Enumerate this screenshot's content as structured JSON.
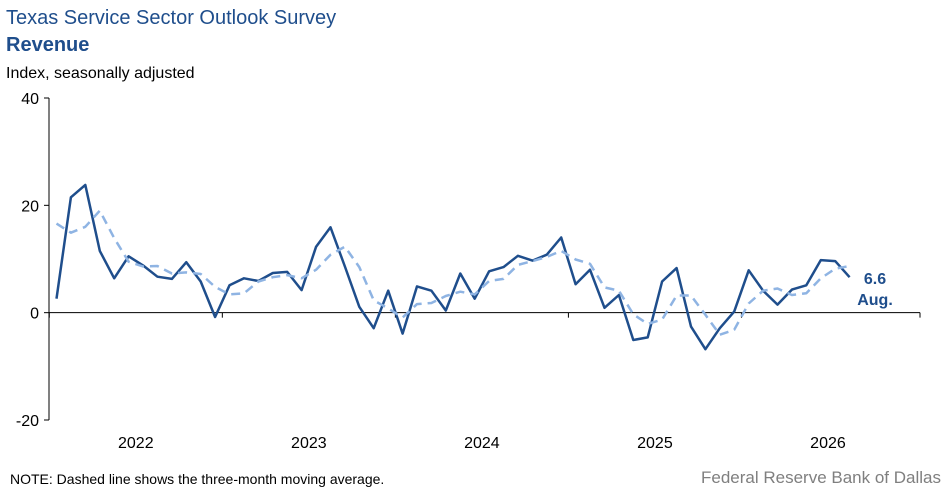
{
  "header": {
    "title": "Texas Service Sector Outlook Survey",
    "subtitle": "Revenue",
    "units": "Index, seasonally adjusted"
  },
  "footer": {
    "note": "NOTE: Dashed line shows the three-month  moving average.",
    "source": "Federal Reserve Bank of Dallas"
  },
  "chart_data": {
    "type": "line",
    "title": "Revenue",
    "ylabel": "Index, seasonally adjusted",
    "xlabel": "",
    "ylim": [
      -20,
      40
    ],
    "yticks": [
      -20,
      0,
      20,
      40
    ],
    "year_labels": [
      "2022",
      "2023",
      "2024",
      "2025",
      "2026"
    ],
    "grid": false,
    "colors": {
      "index": "#1f4e8c",
      "moving_average": "#8fb4e3"
    },
    "series": [
      {
        "key": "index",
        "style": "solid",
        "values": [
          2.6,
          21.5,
          23.8,
          11.5,
          6.4,
          10.5,
          8.8,
          6.7,
          6.3,
          9.4,
          5.8,
          -0.8,
          5.1,
          6.4,
          5.9,
          7.4,
          7.6,
          4.2,
          12.3,
          15.9,
          8.6,
          1.1,
          -2.9,
          4.1,
          -3.9,
          4.9,
          4.1,
          0.4,
          7.3,
          2.6,
          7.7,
          8.5,
          10.6,
          9.7,
          10.8,
          14.0,
          5.3,
          8.0,
          0.9,
          3.3,
          -5.1,
          -4.6,
          5.8,
          8.3,
          -2.6,
          -6.8,
          -2.9,
          0.2,
          7.9,
          4.1,
          1.5,
          4.3,
          5.1,
          9.8,
          9.6,
          6.6
        ]
      },
      {
        "key": "moving_average",
        "style": "dashed",
        "values": [
          16.6,
          14.9,
          16.0,
          19.0,
          13.9,
          9.5,
          8.6,
          8.7,
          7.3,
          7.5,
          7.2,
          4.8,
          3.4,
          3.6,
          5.8,
          6.6,
          7.0,
          6.4,
          8.0,
          10.8,
          12.3,
          8.5,
          2.3,
          0.8,
          -0.9,
          1.6,
          1.8,
          3.1,
          3.9,
          3.4,
          5.9,
          6.3,
          8.9,
          9.6,
          10.4,
          11.5,
          9.9,
          9.1,
          4.7,
          4.1,
          -0.3,
          -2.1,
          -1.3,
          3.2,
          3.2,
          -0.4,
          -4.1,
          -3.2,
          1.7,
          4.1,
          4.5,
          3.3,
          3.6,
          6.4,
          8.2,
          8.7
        ]
      }
    ],
    "annotations": {
      "latest_value": "6.6",
      "latest_month": "Aug."
    }
  }
}
